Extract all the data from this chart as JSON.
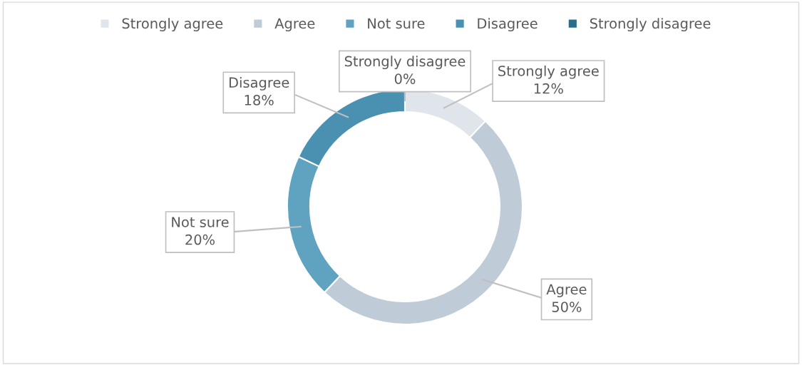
{
  "chart_data": {
    "type": "donut",
    "categories": [
      "Strongly agree",
      "Agree",
      "Not sure",
      "Disagree",
      "Strongly disagree"
    ],
    "values": [
      12,
      50,
      20,
      18,
      0
    ],
    "value_labels": [
      "12%",
      "50%",
      "20%",
      "18%",
      "0%"
    ],
    "colors": [
      "#dfe5ea",
      "#bfcbd6",
      "#5fa3c0",
      "#4a90b0",
      "#2b6c8c"
    ],
    "legend": "top"
  }
}
